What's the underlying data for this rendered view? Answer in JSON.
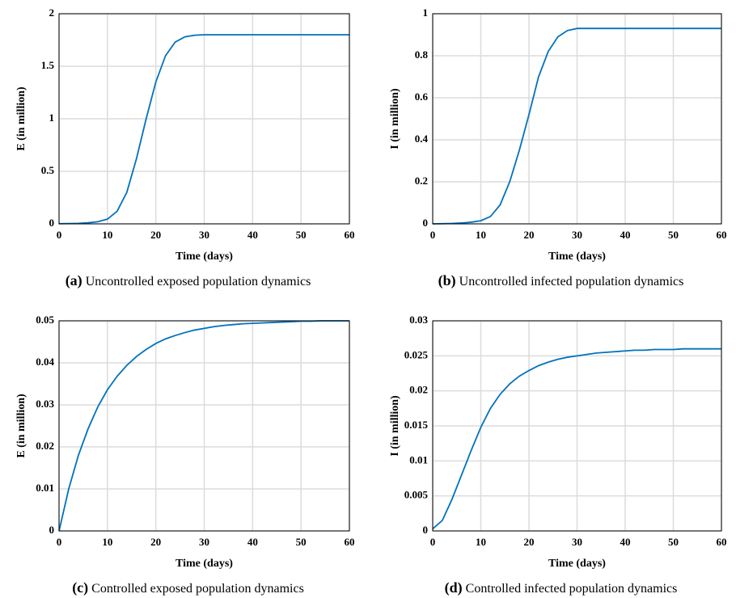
{
  "chart_data": [
    {
      "type": "line",
      "caption_label": "(a)",
      "caption": "Uncontrolled exposed population dynamics",
      "xlabel": "Time (days)",
      "ylabel": "E (in million)",
      "xlim": [
        0,
        60
      ],
      "xticks": [
        0,
        10,
        20,
        30,
        40,
        50,
        60
      ],
      "ylim": [
        0,
        2
      ],
      "yticks": [
        0,
        0.5,
        1,
        1.5,
        2
      ],
      "grid": true,
      "x": [
        0,
        2,
        4,
        6,
        8,
        10,
        12,
        14,
        16,
        18,
        20,
        22,
        24,
        26,
        28,
        30,
        32,
        34,
        36,
        38,
        40,
        42,
        44,
        46,
        48,
        50,
        52,
        54,
        56,
        58,
        60
      ],
      "series": [
        {
          "name": "E",
          "color": "#0072bd",
          "values": [
            0.002,
            0.003,
            0.005,
            0.01,
            0.02,
            0.045,
            0.12,
            0.3,
            0.62,
            1.0,
            1.35,
            1.6,
            1.73,
            1.78,
            1.795,
            1.8,
            1.8,
            1.8,
            1.8,
            1.8,
            1.8,
            1.8,
            1.8,
            1.8,
            1.8,
            1.8,
            1.8,
            1.8,
            1.8,
            1.8,
            1.8
          ]
        }
      ]
    },
    {
      "type": "line",
      "caption_label": "(b)",
      "caption": "Uncontrolled infected population dynamics",
      "xlabel": "Time (days)",
      "ylabel": "I (in million)",
      "xlim": [
        0,
        60
      ],
      "xticks": [
        0,
        10,
        20,
        30,
        40,
        50,
        60
      ],
      "ylim": [
        0,
        1
      ],
      "yticks": [
        0,
        0.2,
        0.4,
        0.6,
        0.8,
        1
      ],
      "grid": true,
      "x": [
        0,
        2,
        4,
        6,
        8,
        10,
        12,
        14,
        16,
        18,
        20,
        22,
        24,
        26,
        28,
        30,
        32,
        34,
        36,
        38,
        40,
        42,
        44,
        46,
        48,
        50,
        52,
        54,
        56,
        58,
        60
      ],
      "series": [
        {
          "name": "I",
          "color": "#0072bd",
          "values": [
            0,
            0.001,
            0.002,
            0.004,
            0.008,
            0.015,
            0.035,
            0.09,
            0.2,
            0.35,
            0.52,
            0.7,
            0.82,
            0.89,
            0.92,
            0.93,
            0.93,
            0.93,
            0.93,
            0.93,
            0.93,
            0.93,
            0.93,
            0.93,
            0.93,
            0.93,
            0.93,
            0.93,
            0.93,
            0.93,
            0.93
          ]
        }
      ]
    },
    {
      "type": "line",
      "caption_label": "(c)",
      "caption": "Controlled exposed population dynamics",
      "xlabel": "Time (days)",
      "ylabel": "E (in million)",
      "xlim": [
        0,
        60
      ],
      "xticks": [
        0,
        10,
        20,
        30,
        40,
        50,
        60
      ],
      "ylim": [
        0,
        0.05
      ],
      "yticks": [
        0,
        0.01,
        0.02,
        0.03,
        0.04,
        0.05
      ],
      "grid": true,
      "x": [
        0,
        2,
        4,
        6,
        8,
        10,
        12,
        14,
        16,
        18,
        20,
        22,
        24,
        26,
        28,
        30,
        32,
        34,
        36,
        38,
        40,
        42,
        44,
        46,
        48,
        50,
        52,
        54,
        56,
        58,
        60
      ],
      "series": [
        {
          "name": "E",
          "color": "#0072bd",
          "values": [
            0,
            0.01,
            0.018,
            0.0243,
            0.0295,
            0.0336,
            0.0368,
            0.0394,
            0.0415,
            0.0432,
            0.0446,
            0.0457,
            0.0465,
            0.0472,
            0.0478,
            0.0482,
            0.0486,
            0.0489,
            0.0491,
            0.0493,
            0.0494,
            0.0495,
            0.0496,
            0.0497,
            0.0498,
            0.0499,
            0.0499,
            0.05,
            0.05,
            0.05,
            0.05
          ]
        }
      ]
    },
    {
      "type": "line",
      "caption_label": "(d)",
      "caption": "Controlled infected population dynamics",
      "xlabel": "Time (days)",
      "ylabel": "I (in million)",
      "xlim": [
        0,
        60
      ],
      "xticks": [
        0,
        10,
        20,
        30,
        40,
        50,
        60
      ],
      "ylim": [
        0,
        0.03
      ],
      "yticks": [
        0,
        0.005,
        0.01,
        0.015,
        0.02,
        0.025,
        0.03
      ],
      "grid": true,
      "x": [
        0,
        2,
        4,
        6,
        8,
        10,
        12,
        14,
        16,
        18,
        20,
        22,
        24,
        26,
        28,
        30,
        32,
        34,
        36,
        38,
        40,
        42,
        44,
        46,
        48,
        50,
        52,
        54,
        56,
        58,
        60
      ],
      "series": [
        {
          "name": "I",
          "color": "#0072bd",
          "values": [
            0.0003,
            0.0015,
            0.0045,
            0.008,
            0.0115,
            0.0148,
            0.0175,
            0.0195,
            0.021,
            0.0221,
            0.0229,
            0.0236,
            0.0241,
            0.0245,
            0.0248,
            0.025,
            0.0252,
            0.0254,
            0.0255,
            0.0256,
            0.0257,
            0.0258,
            0.0258,
            0.0259,
            0.0259,
            0.0259,
            0.026,
            0.026,
            0.026,
            0.026,
            0.026
          ]
        }
      ]
    }
  ]
}
